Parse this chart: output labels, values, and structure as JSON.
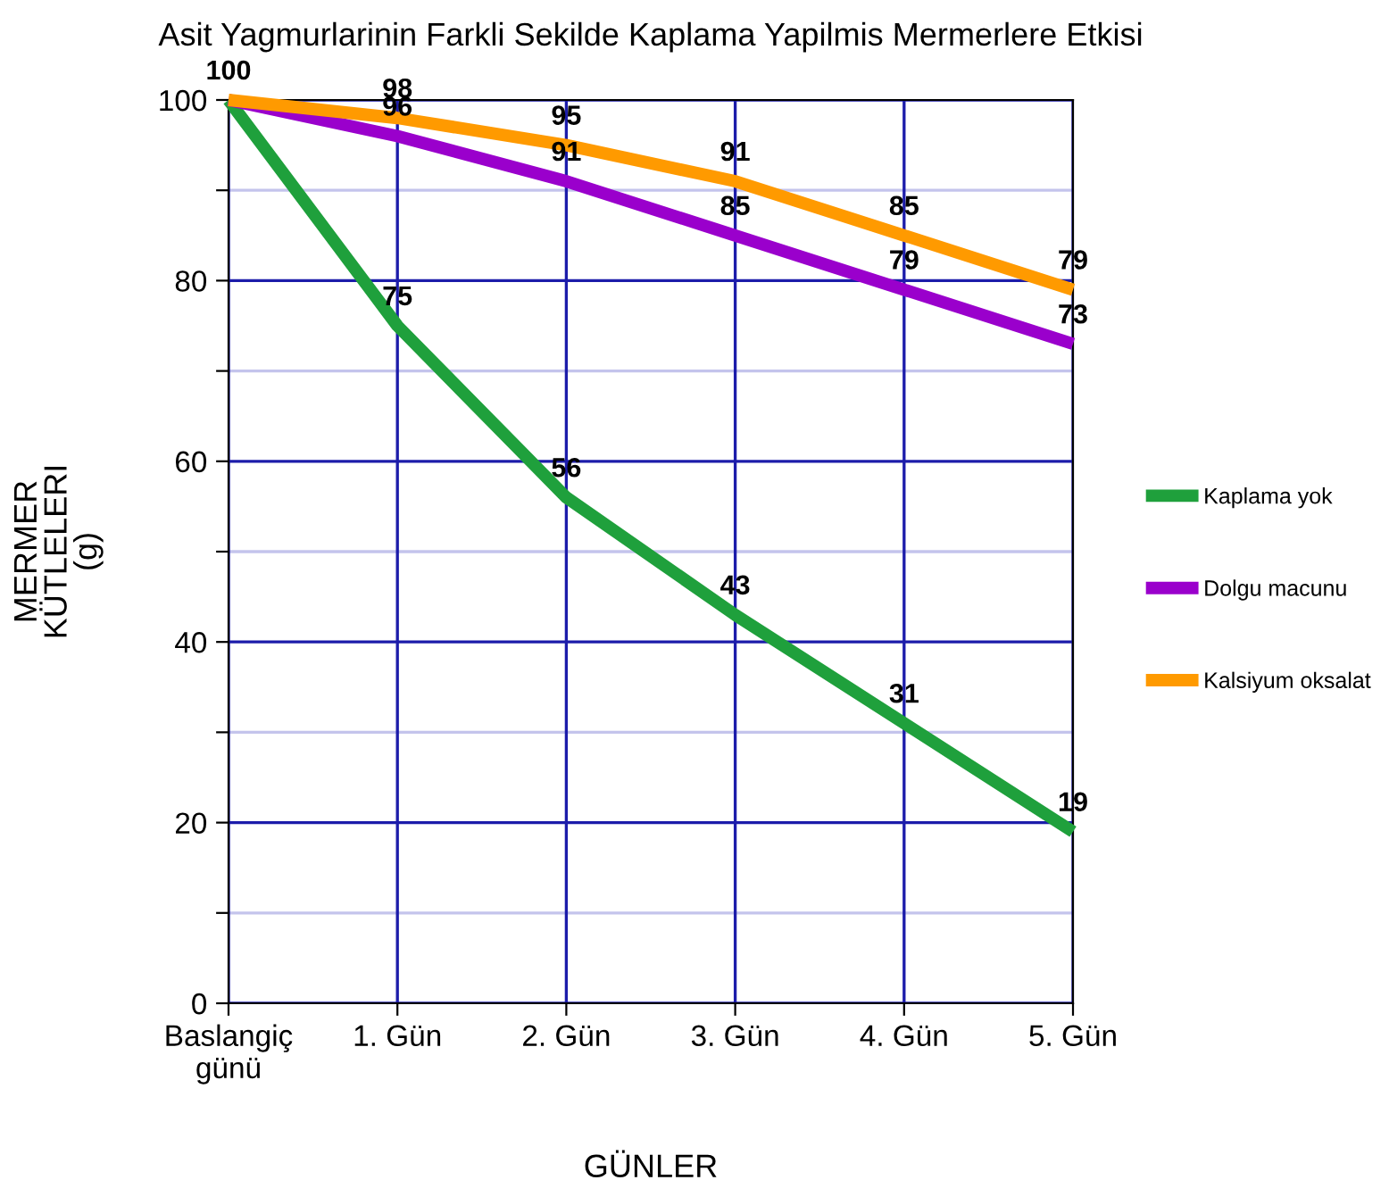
{
  "chart_data": {
    "type": "line",
    "title": "Asit Yagmurlarinin Farkli Sekilde Kaplama Yapilmis Mermerlere Etkisi",
    "xlabel": "GÜNLER",
    "ylabel": "MERMER KÜTLELERI (g)",
    "categories": [
      "Baslangiç günü",
      "1. Gün",
      "2. Gün",
      "3. Gün",
      "4. Gün",
      "5. Gün"
    ],
    "series": [
      {
        "name": "Kaplama yok",
        "color": "#1fa03c",
        "values": [
          100,
          75,
          56,
          43,
          31,
          19
        ],
        "value_labels": [
          "100",
          "75",
          "56",
          "43",
          "31",
          "19"
        ]
      },
      {
        "name": "Dolgu macunu",
        "color": "#9a00cc",
        "values": [
          100,
          96,
          91,
          85,
          79,
          73
        ],
        "value_labels": [
          null,
          "96",
          "91",
          "85",
          "79",
          "73"
        ]
      },
      {
        "name": "Kalsiyum oksalat",
        "color": "#ff9a00",
        "values": [
          100,
          98,
          95,
          91,
          85,
          79
        ],
        "value_labels": [
          null,
          "98",
          "95",
          "91",
          "85",
          "79"
        ]
      }
    ],
    "ylim": [
      0,
      100
    ],
    "yticks": [
      0,
      {
        "value": 10,
        "label": null
      },
      20,
      {
        "value": 30,
        "label": null
      },
      40,
      {
        "value": 50,
        "label": null
      },
      60,
      {
        "value": 70,
        "label": null
      },
      80,
      {
        "value": 90,
        "label": null
      },
      100
    ],
    "grid": true,
    "legend": "right",
    "marker": "none",
    "line_style": "solid"
  }
}
